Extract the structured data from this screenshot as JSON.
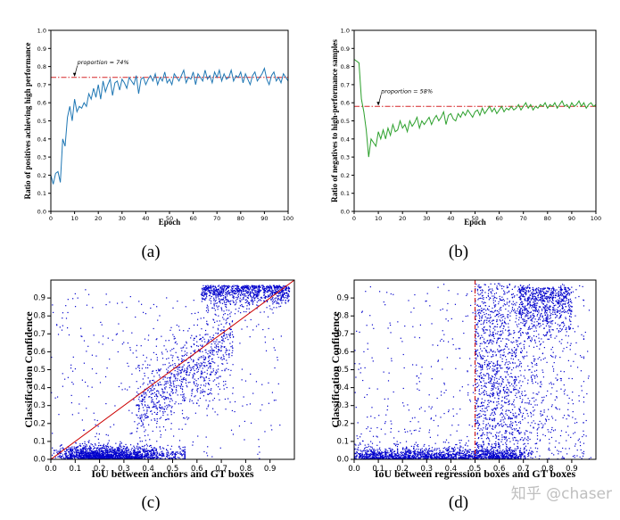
{
  "chart_data": [
    {
      "panel": "a",
      "type": "line",
      "caption": "(a)",
      "xlabel": "Epoch",
      "ylabel": "Ratio of positives achieving high performance",
      "xlim": [
        0,
        100
      ],
      "ylim": [
        0.0,
        1.0
      ],
      "xticks": [
        "0",
        "10",
        "20",
        "30",
        "40",
        "50",
        "60",
        "70",
        "80",
        "90",
        "100"
      ],
      "yticks": [
        "0.0",
        "0.1",
        "0.2",
        "0.3",
        "0.4",
        "0.5",
        "0.6",
        "0.7",
        "0.8",
        "0.9",
        "1.0"
      ],
      "line_color": "#1f77b4",
      "reference": {
        "value": 0.74,
        "color": "#d62728",
        "label": "proportion = 74%"
      },
      "x": [
        0,
        1,
        2,
        3,
        4,
        5,
        6,
        7,
        8,
        9,
        10,
        11,
        12,
        13,
        14,
        15,
        16,
        17,
        18,
        19,
        20,
        21,
        22,
        23,
        24,
        25,
        26,
        27,
        28,
        29,
        30,
        31,
        32,
        33,
        34,
        35,
        36,
        37,
        38,
        39,
        40,
        41,
        42,
        43,
        44,
        45,
        46,
        47,
        48,
        49,
        50,
        51,
        52,
        53,
        54,
        55,
        56,
        57,
        58,
        59,
        60,
        61,
        62,
        63,
        64,
        65,
        66,
        67,
        68,
        69,
        70,
        71,
        72,
        73,
        74,
        75,
        76,
        77,
        78,
        79,
        80,
        81,
        82,
        83,
        84,
        85,
        86,
        87,
        88,
        89,
        90,
        91,
        92,
        93,
        94,
        95,
        96,
        97,
        98,
        99,
        100
      ],
      "y": [
        0.2,
        0.15,
        0.21,
        0.22,
        0.16,
        0.4,
        0.36,
        0.52,
        0.58,
        0.5,
        0.62,
        0.55,
        0.58,
        0.57,
        0.6,
        0.58,
        0.65,
        0.62,
        0.68,
        0.63,
        0.7,
        0.62,
        0.72,
        0.66,
        0.7,
        0.73,
        0.64,
        0.71,
        0.72,
        0.67,
        0.73,
        0.71,
        0.68,
        0.74,
        0.72,
        0.7,
        0.75,
        0.65,
        0.73,
        0.74,
        0.7,
        0.73,
        0.75,
        0.72,
        0.76,
        0.7,
        0.74,
        0.72,
        0.77,
        0.71,
        0.73,
        0.7,
        0.76,
        0.74,
        0.72,
        0.75,
        0.78,
        0.71,
        0.74,
        0.73,
        0.77,
        0.7,
        0.76,
        0.74,
        0.72,
        0.78,
        0.73,
        0.75,
        0.71,
        0.77,
        0.74,
        0.78,
        0.72,
        0.76,
        0.73,
        0.74,
        0.78,
        0.72,
        0.75,
        0.74,
        0.77,
        0.71,
        0.76,
        0.73,
        0.7,
        0.75,
        0.77,
        0.72,
        0.74,
        0.76,
        0.79,
        0.73,
        0.7,
        0.75,
        0.77,
        0.72,
        0.74,
        0.71,
        0.76,
        0.74,
        0.72
      ]
    },
    {
      "panel": "b",
      "type": "line",
      "caption": "(b)",
      "xlabel": "Epoch",
      "ylabel": "Ratio of negatives to high-performance samples",
      "xlim": [
        0,
        100
      ],
      "ylim": [
        0.0,
        1.0
      ],
      "xticks": [
        "0",
        "10",
        "20",
        "30",
        "40",
        "50",
        "60",
        "70",
        "80",
        "90",
        "100"
      ],
      "yticks": [
        "0.0",
        "0.1",
        "0.2",
        "0.3",
        "0.4",
        "0.5",
        "0.6",
        "0.7",
        "0.8",
        "0.9",
        "1.0"
      ],
      "line_color": "#2ca02c",
      "reference": {
        "value": 0.58,
        "color": "#d62728",
        "label": "proportion = 58%"
      },
      "x": [
        0,
        1,
        2,
        3,
        4,
        5,
        6,
        7,
        8,
        9,
        10,
        11,
        12,
        13,
        14,
        15,
        16,
        17,
        18,
        19,
        20,
        21,
        22,
        23,
        24,
        25,
        26,
        27,
        28,
        29,
        30,
        31,
        32,
        33,
        34,
        35,
        36,
        37,
        38,
        39,
        40,
        41,
        42,
        43,
        44,
        45,
        46,
        47,
        48,
        49,
        50,
        51,
        52,
        53,
        54,
        55,
        56,
        57,
        58,
        59,
        60,
        61,
        62,
        63,
        64,
        65,
        66,
        67,
        68,
        69,
        70,
        71,
        72,
        73,
        74,
        75,
        76,
        77,
        78,
        79,
        80,
        81,
        82,
        83,
        84,
        85,
        86,
        87,
        88,
        89,
        90,
        91,
        92,
        93,
        94,
        95,
        96,
        97,
        98,
        99,
        100
      ],
      "y": [
        0.84,
        0.83,
        0.82,
        0.62,
        0.55,
        0.45,
        0.3,
        0.4,
        0.38,
        0.36,
        0.44,
        0.4,
        0.45,
        0.4,
        0.46,
        0.42,
        0.48,
        0.44,
        0.45,
        0.5,
        0.46,
        0.48,
        0.44,
        0.5,
        0.47,
        0.49,
        0.52,
        0.46,
        0.5,
        0.48,
        0.5,
        0.52,
        0.48,
        0.51,
        0.53,
        0.5,
        0.52,
        0.55,
        0.48,
        0.53,
        0.54,
        0.51,
        0.5,
        0.54,
        0.52,
        0.55,
        0.53,
        0.56,
        0.54,
        0.52,
        0.55,
        0.56,
        0.53,
        0.57,
        0.54,
        0.56,
        0.58,
        0.55,
        0.57,
        0.54,
        0.56,
        0.58,
        0.55,
        0.57,
        0.56,
        0.58,
        0.56,
        0.57,
        0.59,
        0.56,
        0.58,
        0.6,
        0.57,
        0.59,
        0.56,
        0.58,
        0.57,
        0.59,
        0.58,
        0.6,
        0.57,
        0.59,
        0.58,
        0.6,
        0.57,
        0.59,
        0.61,
        0.58,
        0.59,
        0.57,
        0.6,
        0.58,
        0.59,
        0.61,
        0.58,
        0.6,
        0.57,
        0.59,
        0.6,
        0.58,
        0.59
      ]
    },
    {
      "panel": "c",
      "type": "scatter",
      "caption": "(c)",
      "xlabel": "IoU between anchors and GT boxes",
      "ylabel": "Classification Confidence",
      "xlim": [
        0.0,
        1.0
      ],
      "ylim": [
        0.0,
        1.0
      ],
      "xticks": [
        "0.0",
        "0.1",
        "0.2",
        "0.3",
        "0.4",
        "0.5",
        "0.6",
        "0.7",
        "0.8",
        "0.9"
      ],
      "yticks": [
        "0.0",
        "0.1",
        "0.2",
        "0.3",
        "0.4",
        "0.5",
        "0.6",
        "0.7",
        "0.8",
        "0.9"
      ],
      "point_color": "#0000cc",
      "reference": {
        "kind": "diagonal",
        "from": [
          0.0,
          0.0
        ],
        "to": [
          1.0,
          1.0
        ],
        "color": "#cc0000"
      }
    },
    {
      "panel": "d",
      "type": "scatter",
      "caption": "(d)",
      "xlabel": "IoU between regression boxes and GT boxes",
      "ylabel": "Classification Confidence",
      "xlim": [
        0.0,
        1.0
      ],
      "ylim": [
        0.0,
        1.0
      ],
      "xticks": [
        "0.0",
        "0.1",
        "0.2",
        "0.3",
        "0.4",
        "0.5",
        "0.6",
        "0.7",
        "0.8",
        "0.9"
      ],
      "yticks": [
        "0.0",
        "0.1",
        "0.2",
        "0.3",
        "0.4",
        "0.5",
        "0.6",
        "0.7",
        "0.8",
        "0.9"
      ],
      "point_color": "#0000cc",
      "reference": {
        "kind": "vertical",
        "x": 0.5,
        "color": "#cc0000"
      }
    }
  ],
  "watermark": "知乎 @chaser"
}
